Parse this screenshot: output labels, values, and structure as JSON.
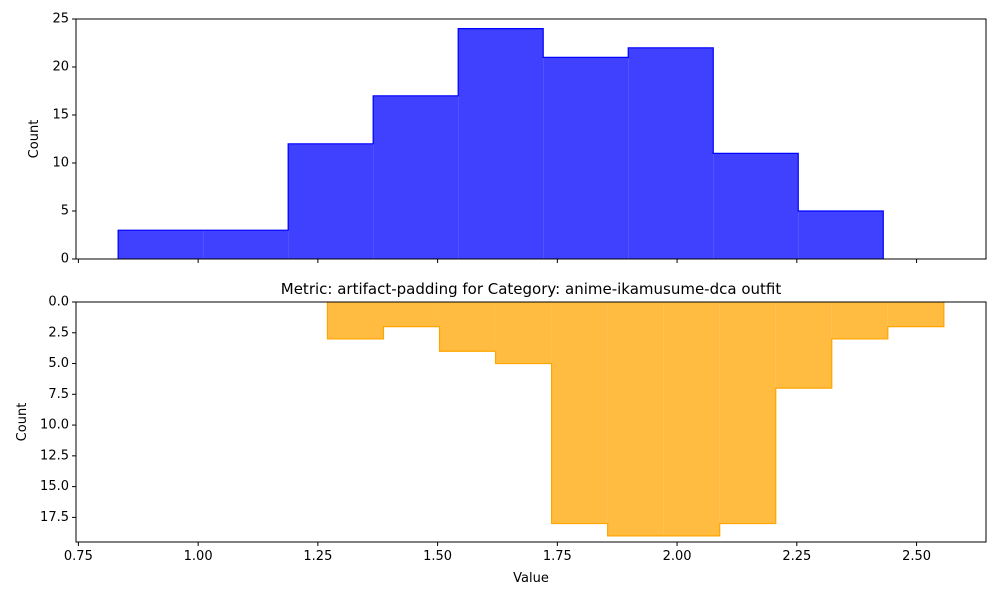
{
  "chart_data": [
    {
      "type": "histogram",
      "title": "",
      "xlabel": "",
      "ylabel": "Count",
      "xlim": [
        0.745,
        2.645
      ],
      "ylim": [
        0,
        25
      ],
      "yticks": [
        0,
        5,
        10,
        15,
        20,
        25
      ],
      "ytick_labels": [
        "0",
        "5",
        "10",
        "15",
        "20",
        "25"
      ],
      "xticks": [
        0.75,
        1.0,
        1.25,
        1.5,
        1.75,
        2.0,
        2.25,
        2.5
      ],
      "xtick_labels_shown": false,
      "y_inverted": false,
      "color": "#0000ff",
      "bin_edges": [
        0.833,
        1.0105,
        1.188,
        1.3655,
        1.543,
        1.7205,
        1.898,
        2.0755,
        2.253,
        2.4305
      ],
      "counts": [
        3,
        3,
        12,
        17,
        24,
        21,
        22,
        11,
        5
      ]
    },
    {
      "type": "histogram",
      "title": "Metric: artifact-padding for Category: anime-ikamusume-dca outfit",
      "xlabel": "Value",
      "ylabel": "Count",
      "xlim": [
        0.745,
        2.645
      ],
      "ylim": [
        19.5,
        0
      ],
      "yticks": [
        0.0,
        2.5,
        5.0,
        7.5,
        10.0,
        12.5,
        15.0,
        17.5
      ],
      "ytick_labels": [
        "0.0",
        "2.5",
        "5.0",
        "7.5",
        "10.0",
        "12.5",
        "15.0",
        "17.5"
      ],
      "xticks": [
        0.75,
        1.0,
        1.25,
        1.5,
        1.75,
        2.0,
        2.25,
        2.5
      ],
      "xtick_labels": [
        "0.75",
        "1.00",
        "1.25",
        "1.50",
        "1.75",
        "2.00",
        "2.25",
        "2.50"
      ],
      "y_inverted": true,
      "color": "#ffa500",
      "bin_edges": [
        1.27,
        1.387,
        1.504,
        1.621,
        1.738,
        1.855,
        1.972,
        2.089,
        2.206,
        2.323,
        2.44,
        2.557
      ],
      "counts": [
        3,
        2,
        4,
        5,
        18,
        19,
        19,
        18,
        7,
        3,
        2
      ]
    }
  ]
}
